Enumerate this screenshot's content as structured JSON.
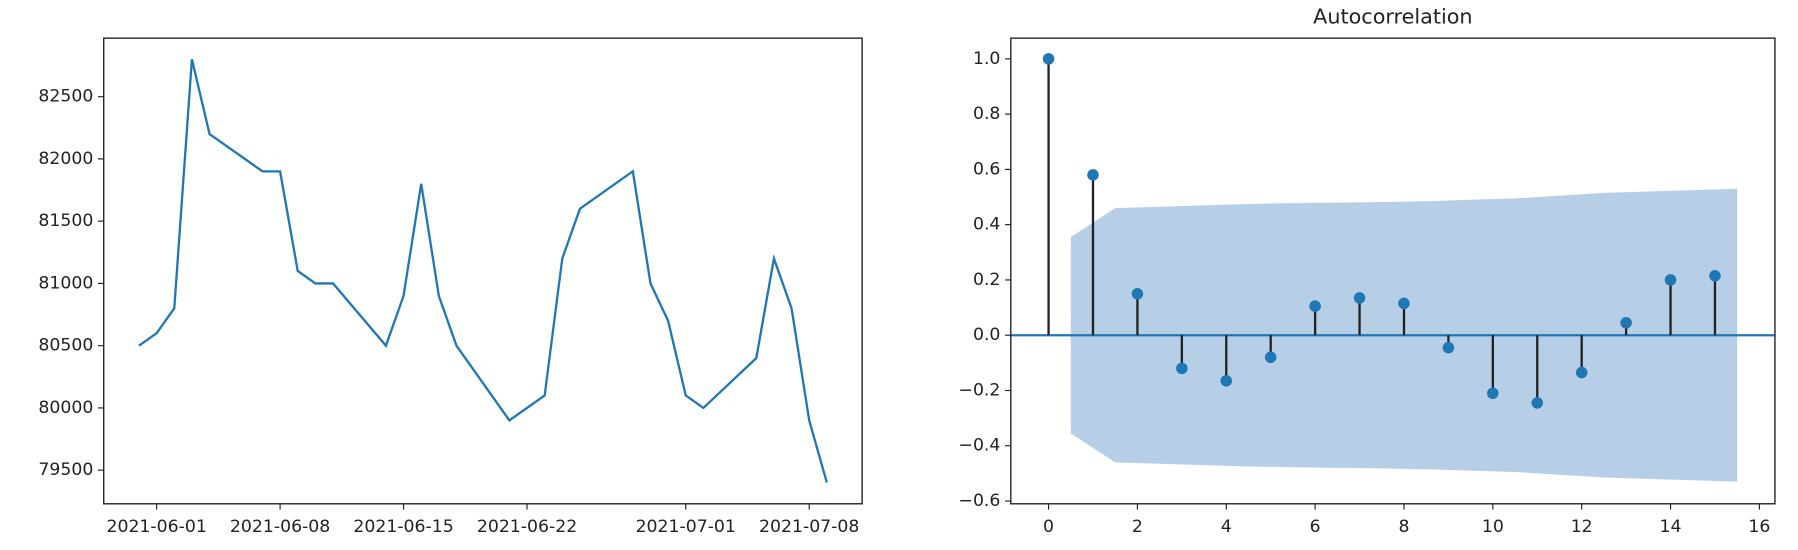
{
  "chart_data": [
    {
      "type": "line",
      "x": [
        "2021-05-31",
        "2021-06-01",
        "2021-06-02",
        "2021-06-03",
        "2021-06-04",
        "2021-06-07",
        "2021-06-08",
        "2021-06-09",
        "2021-06-10",
        "2021-06-11",
        "2021-06-14",
        "2021-06-15",
        "2021-06-16",
        "2021-06-17",
        "2021-06-18",
        "2021-06-21",
        "2021-06-23",
        "2021-06-24",
        "2021-06-25",
        "2021-06-28",
        "2021-06-29",
        "2021-06-30",
        "2021-07-01",
        "2021-07-02",
        "2021-07-05",
        "2021-07-06",
        "2021-07-07",
        "2021-07-08",
        "2021-07-09"
      ],
      "series": [
        {
          "color": "#1f77b4",
          "values": [
            80500,
            80600,
            80800,
            82800,
            82200,
            81900,
            81900,
            81100,
            81000,
            81000,
            80500,
            80900,
            81800,
            80900,
            80500,
            79900,
            80100,
            81200,
            81600,
            81900,
            81000,
            80700,
            80100,
            80000,
            80400,
            81200,
            80800,
            79900,
            79400
          ]
        }
      ],
      "xlim": [
        "2021-05-29",
        "2021-07-11"
      ],
      "xticks": [
        "2021-06-01",
        "2021-06-08",
        "2021-06-15",
        "2021-06-22",
        "2021-07-01",
        "2021-07-08"
      ],
      "ylim": [
        79230,
        82970
      ],
      "yticks": [
        79500,
        80000,
        80500,
        81000,
        81500,
        82000,
        82500
      ]
    },
    {
      "type": "stem",
      "title": "Autocorrelation",
      "x": [
        0,
        1,
        2,
        3,
        4,
        5,
        6,
        7,
        8,
        9,
        10,
        11,
        12,
        13,
        14,
        15
      ],
      "values": [
        1.0,
        0.58,
        0.15,
        -0.12,
        -0.165,
        -0.08,
        0.105,
        0.135,
        0.115,
        -0.045,
        -0.21,
        -0.245,
        -0.135,
        0.045,
        0.2,
        0.215
      ],
      "color": "#1f77b4",
      "band": {
        "color": "#b6cfe6",
        "x": [
          0.5,
          1.5,
          2.5,
          3.5,
          4.5,
          5.5,
          6.5,
          7.5,
          8.5,
          9.5,
          10.5,
          11.5,
          12.5,
          13.5,
          14.5,
          15.5
        ],
        "upper": [
          0.355,
          0.46,
          0.465,
          0.47,
          0.475,
          0.478,
          0.48,
          0.482,
          0.485,
          0.49,
          0.495,
          0.505,
          0.515,
          0.52,
          0.525,
          0.53
        ],
        "lower": [
          -0.355,
          -0.46,
          -0.465,
          -0.47,
          -0.475,
          -0.478,
          -0.48,
          -0.482,
          -0.485,
          -0.49,
          -0.495,
          -0.505,
          -0.515,
          -0.52,
          -0.525,
          -0.53
        ]
      },
      "xlim": [
        -0.85,
        16.35
      ],
      "xticks": [
        0,
        2,
        4,
        6,
        8,
        10,
        12,
        14,
        16
      ],
      "ylim": [
        -0.61,
        1.075
      ],
      "yticks": [
        {
          "value": -0.6,
          "label": "−0.6"
        },
        {
          "value": -0.4,
          "label": "−0.4"
        },
        {
          "value": -0.2,
          "label": "−0.2"
        },
        {
          "value": 0,
          "label": "0.0"
        },
        {
          "value": 0.2,
          "label": "0.2"
        },
        {
          "value": 0.4,
          "label": "0.4"
        },
        {
          "value": 0.6,
          "label": "0.6"
        },
        {
          "value": 0.8,
          "label": "0.8"
        },
        {
          "value": 1.0,
          "label": "1.0"
        }
      ]
    }
  ]
}
